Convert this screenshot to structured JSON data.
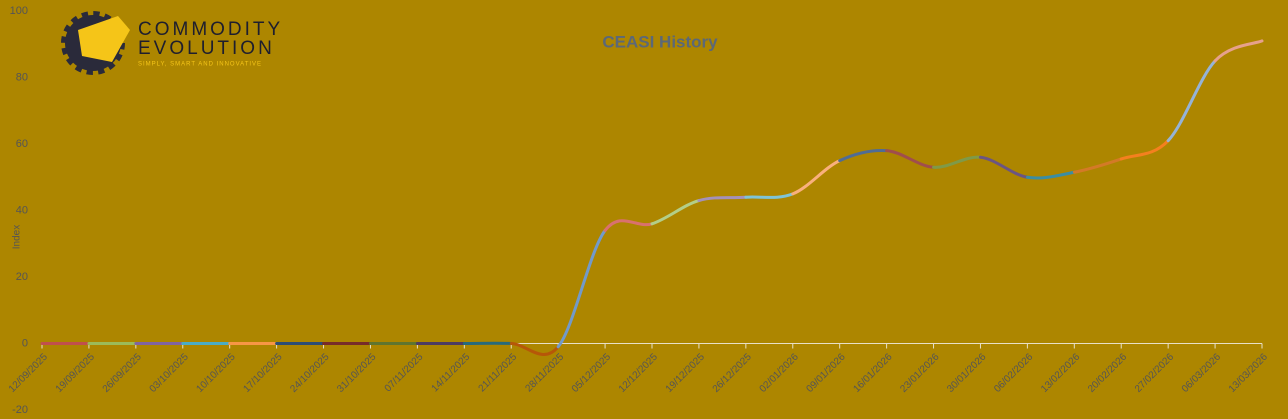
{
  "chart_data": {
    "type": "line",
    "title": "CEASI History",
    "y_label": "Index",
    "logo": {
      "line1": "COMMODITY",
      "line2": "EVOLUTION",
      "tagline": "SIMPLY, SMART AND INNOVATIVE"
    },
    "categories": [
      "12/09/2025",
      "19/09/2025",
      "26/09/2025",
      "03/10/2025",
      "10/10/2025",
      "17/10/2025",
      "24/10/2025",
      "31/10/2025",
      "07/11/2025",
      "14/11/2025",
      "21/11/2025",
      "28/11/2025",
      "05/12/2025",
      "12/12/2025",
      "19/12/2025",
      "26/12/2025",
      "02/01/2026",
      "09/01/2026",
      "16/01/2026",
      "23/01/2026",
      "30/01/2026",
      "06/02/2026",
      "13/02/2026",
      "20/02/2026",
      "27/02/2026",
      "06/03/2026",
      "13/03/2026"
    ],
    "series": [
      {
        "values": [
          0,
          0,
          0,
          0,
          0,
          0,
          0,
          0,
          0,
          0,
          0,
          -1,
          34,
          36,
          43,
          44,
          45,
          55,
          58,
          53,
          56,
          50,
          51.5,
          55.5,
          61,
          85,
          91
        ],
        "segment_colors": [
          "#c0504d",
          "#9bbb59",
          "#8064a2",
          "#4bacc6",
          "#f79646",
          "#2c4d75",
          "#772c2a",
          "#5f7530",
          "#4d3b62",
          "#276a7c",
          "#b65708",
          "#729aca",
          "#d9716e",
          "#b3ce88",
          "#a491ba",
          "#7fc4d6",
          "#f9b07d",
          "#4f6c95",
          "#a04e4c",
          "#7f9a48",
          "#6b5582",
          "#3b8da3",
          "#d37a27",
          "#f4801f",
          "#95b3d7",
          "#e6a18c"
        ]
      }
    ],
    "ylim": [
      -20,
      100
    ],
    "yticks": [
      -20,
      0,
      20,
      40,
      60,
      80,
      100
    ]
  }
}
